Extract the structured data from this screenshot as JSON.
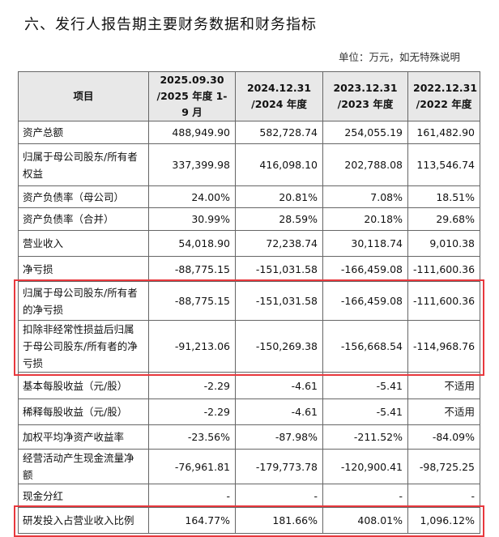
{
  "title": "六、发行人报告期主要财务数据和财务指标",
  "unit_note": "单位：万元，如无特殊说明",
  "table": {
    "header": [
      [
        "项目"
      ],
      [
        "2025.09.30",
        "/2025 年度 1-9 月"
      ],
      [
        "2024.12.31",
        "/2024 年度"
      ],
      [
        "2023.12.31",
        "/2023 年度"
      ],
      [
        "2022.12.31",
        "/2022 年度"
      ]
    ],
    "rows": [
      [
        "资产总额",
        "488,949.90",
        "582,728.74",
        "254,055.19",
        "161,482.90"
      ],
      [
        "归属于母公司股东/所有者权益",
        "337,399.98",
        "416,098.10",
        "202,788.08",
        "113,546.74"
      ],
      [
        "资产负债率（母公司）",
        "24.00%",
        "20.81%",
        "7.08%",
        "18.51%"
      ],
      [
        "资产负债率（合并）",
        "30.99%",
        "28.59%",
        "20.18%",
        "29.68%"
      ],
      [
        "营业收入",
        "54,018.90",
        "72,238.74",
        "30,118.74",
        "9,010.38"
      ],
      [
        "净亏损",
        "-88,775.15",
        "-151,031.58",
        "-166,459.08",
        "-111,600.36"
      ],
      [
        "归属于母公司股东/所有者的净亏损",
        "-88,775.15",
        "-151,031.58",
        "-166,459.08",
        "-111,600.36"
      ],
      [
        "扣除非经常性损益后归属于母公司股东/所有者的净亏损",
        "-91,213.06",
        "-150,269.38",
        "-156,668.54",
        "-114,968.76"
      ],
      [
        "基本每股收益（元/股）",
        "-2.29",
        "-4.61",
        "-5.41",
        "不适用"
      ],
      [
        "稀释每股收益（元/股）",
        "-2.29",
        "-4.61",
        "-5.41",
        "不适用"
      ],
      [
        "加权平均净资产收益率",
        "-23.56%",
        "-87.98%",
        "-211.52%",
        "-84.09%"
      ],
      [
        "经营活动产生现金流量净额",
        "-76,961.81",
        "-179,773.78",
        "-120,900.41",
        "-98,725.25"
      ],
      [
        "现金分红",
        "-",
        "-",
        "-",
        "-"
      ],
      [
        "研发投入占营业收入比例",
        "164.77%",
        "181.66%",
        "408.01%",
        "1,096.12%"
      ]
    ]
  }
}
